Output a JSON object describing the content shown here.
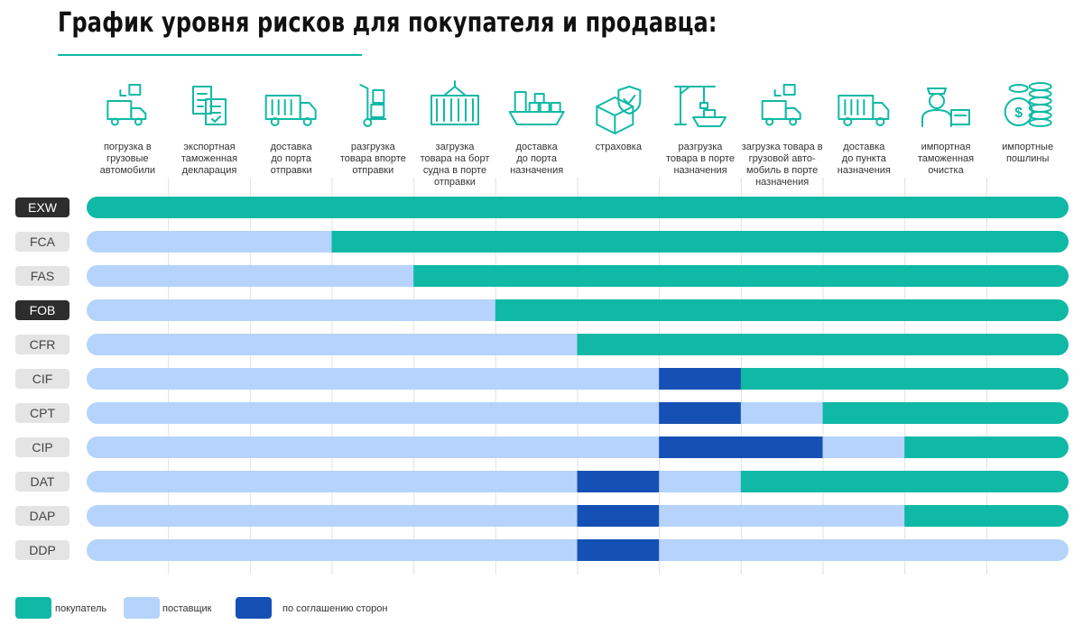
{
  "title": "График уровня рисков для покупателя и продавца:",
  "colors": {
    "buyer": "#0fb9a6",
    "seller": "#b5d3fb",
    "agreement": "#1550b4",
    "label_bg": "#e4e4e4",
    "label_bg_dark": "#2d2d2d",
    "accent": "#0fb9a6"
  },
  "chart_data": {
    "type": "table",
    "steps": [
      {
        "label": [
          "погрузка в",
          "грузовые",
          "автомобили"
        ],
        "icon": "truck-loading-icon"
      },
      {
        "label": [
          "экспортная",
          "таможенная",
          "декларация"
        ],
        "icon": "customs-declaration-icon"
      },
      {
        "label": [
          "доставка",
          "до порта",
          "отправки"
        ],
        "icon": "truck-icon"
      },
      {
        "label": [
          "разгрузка",
          "товара впорте",
          "отправки"
        ],
        "icon": "hand-truck-icon"
      },
      {
        "label": [
          "загрузка",
          "товара на борт",
          "судна в порте",
          "отправки"
        ],
        "icon": "container-icon"
      },
      {
        "label": [
          "доставка",
          "до порта",
          "назначения"
        ],
        "icon": "ship-icon"
      },
      {
        "label": [
          "страховка"
        ],
        "icon": "insurance-shield-icon"
      },
      {
        "label": [
          "разгрузка",
          "товара в порте",
          "назначения"
        ],
        "icon": "port-crane-icon"
      },
      {
        "label": [
          "загрузка товара в",
          "грузовой авто-",
          "мобиль в порте",
          "назначения"
        ],
        "icon": "truck-loading-icon"
      },
      {
        "label": [
          "доставка",
          "до пункта",
          "назначения"
        ],
        "icon": "truck-icon"
      },
      {
        "label": [
          "импортная",
          "таможенная",
          "очистка"
        ],
        "icon": "customs-officer-icon"
      },
      {
        "label": [
          "импортные",
          "пошлины"
        ],
        "icon": "coins-icon"
      }
    ],
    "rows": [
      {
        "code": "EXW",
        "highlight": true,
        "segments": [
          [
            "buyer",
            12
          ]
        ]
      },
      {
        "code": "FCA",
        "highlight": false,
        "segments": [
          [
            "seller",
            3
          ],
          [
            "buyer",
            9
          ]
        ]
      },
      {
        "code": "FAS",
        "highlight": false,
        "segments": [
          [
            "seller",
            4
          ],
          [
            "buyer",
            8
          ]
        ]
      },
      {
        "code": "FOB",
        "highlight": true,
        "segments": [
          [
            "seller",
            5
          ],
          [
            "buyer",
            7
          ]
        ]
      },
      {
        "code": "CFR",
        "highlight": false,
        "segments": [
          [
            "seller",
            6
          ],
          [
            "buyer",
            6
          ]
        ]
      },
      {
        "code": "CIF",
        "highlight": false,
        "segments": [
          [
            "seller",
            7
          ],
          [
            "agreement",
            1
          ],
          [
            "buyer",
            4
          ]
        ]
      },
      {
        "code": "CPT",
        "highlight": false,
        "segments": [
          [
            "seller",
            7
          ],
          [
            "agreement",
            1
          ],
          [
            "seller",
            1
          ],
          [
            "buyer",
            3
          ]
        ]
      },
      {
        "code": "CIP",
        "highlight": false,
        "segments": [
          [
            "seller",
            7
          ],
          [
            "agreement",
            2
          ],
          [
            "seller",
            1
          ],
          [
            "buyer",
            2
          ]
        ]
      },
      {
        "code": "DAT",
        "highlight": false,
        "segments": [
          [
            "seller",
            6
          ],
          [
            "agreement",
            1
          ],
          [
            "seller",
            1
          ],
          [
            "buyer",
            4
          ]
        ]
      },
      {
        "code": "DAP",
        "highlight": false,
        "segments": [
          [
            "seller",
            6
          ],
          [
            "agreement",
            1
          ],
          [
            "seller",
            3
          ],
          [
            "buyer",
            2
          ]
        ]
      },
      {
        "code": "DDP",
        "highlight": false,
        "segments": [
          [
            "seller",
            6
          ],
          [
            "agreement",
            1
          ],
          [
            "seller",
            5
          ]
        ]
      }
    ],
    "legend": [
      {
        "key": "buyer",
        "label": "покупатель"
      },
      {
        "key": "seller",
        "label": "поставщик"
      },
      {
        "key": "agreement",
        "label": "по соглашению сторон"
      }
    ]
  }
}
